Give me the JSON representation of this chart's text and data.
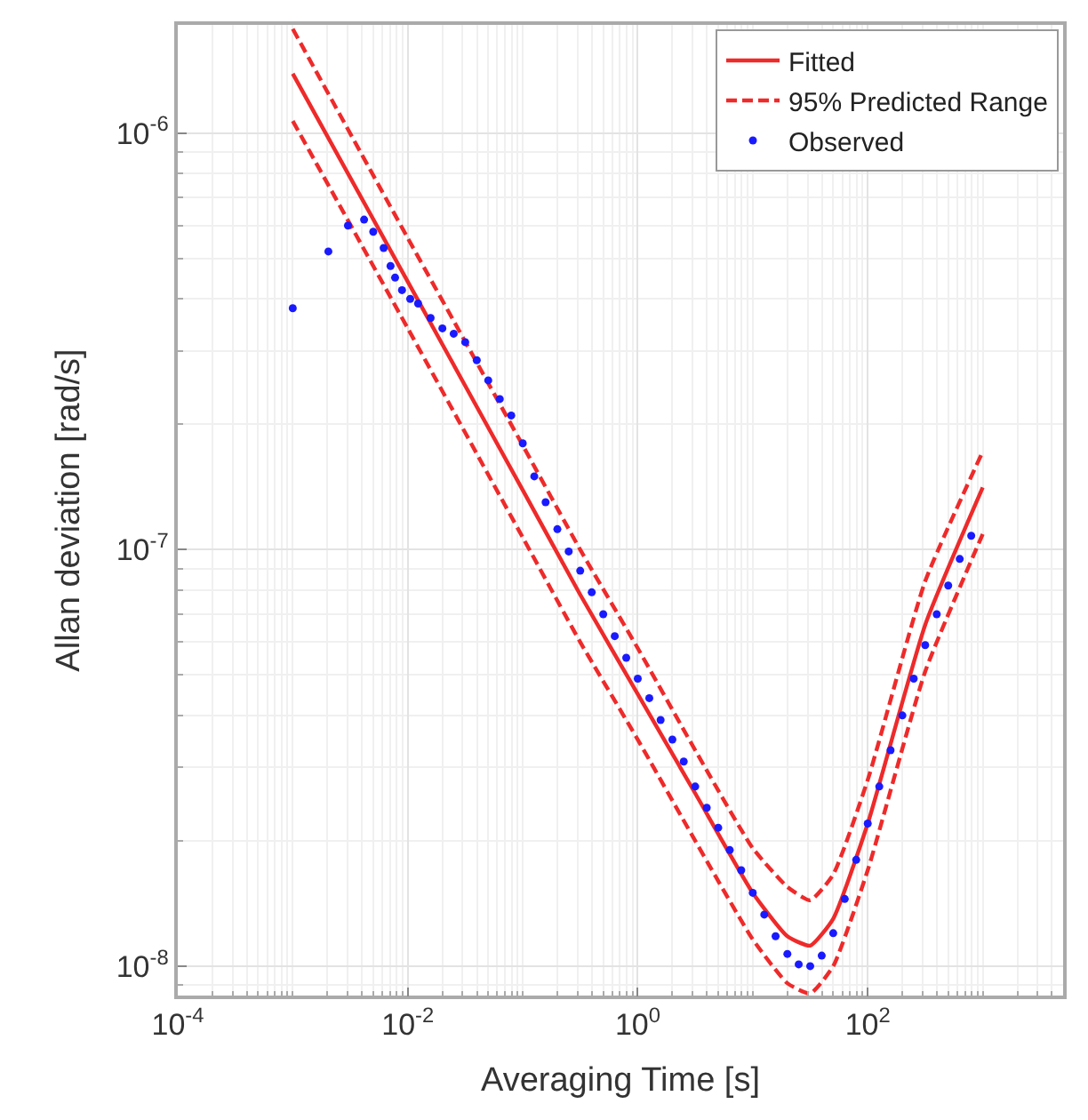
{
  "chart_data": {
    "type": "line",
    "xlabel": "Averaging Time [s]",
    "ylabel": "Allan deviation [rad/s]",
    "log": "xy",
    "grid": true,
    "legend": "top right",
    "xlim": [
      0.0001,
      5000
    ],
    "ylim": [
      8.5e-09,
      1.82e-06
    ],
    "xticks": [
      {
        "value": 0.0001,
        "label": "10$^{-4}$"
      },
      {
        "value": 0.01,
        "label": "10$^{-2}$"
      },
      {
        "value": 1,
        "label": "10$^{0}$"
      },
      {
        "value": 100,
        "label": "10$^{2}$"
      }
    ],
    "yticks": [
      {
        "value": 1e-08,
        "label": "10$^{-8}$"
      },
      {
        "value": 1e-07,
        "label": "10$^{-7}$"
      },
      {
        "value": 1e-06,
        "label": "10$^{-6}$"
      }
    ],
    "series": [
      {
        "name": "Observed",
        "type": "scatter",
        "marker": "circle",
        "color": "#1a1aff",
        "x": [
          0.001,
          0.00204,
          0.00302,
          0.00417,
          0.00501,
          0.00617,
          0.00708,
          0.00776,
          0.00891,
          0.0105,
          0.0123,
          0.0158,
          0.02,
          0.0251,
          0.0316,
          0.0398,
          0.0501,
          0.0631,
          0.0794,
          0.1,
          0.126,
          0.158,
          0.2,
          0.251,
          0.316,
          0.398,
          0.501,
          0.631,
          0.794,
          1,
          1.26,
          1.58,
          2,
          2.51,
          3.16,
          3.98,
          5.01,
          6.31,
          7.94,
          10,
          12.6,
          15.8,
          20,
          25.1,
          31.6,
          39.8,
          50.1,
          63.1,
          79.4,
          100,
          126,
          158,
          200,
          251,
          316,
          398,
          501,
          631,
          794
        ],
        "values": [
          3.8e-07,
          5.2e-07,
          6e-07,
          6.2e-07,
          5.8e-07,
          5.3e-07,
          4.8e-07,
          4.5e-07,
          4.2e-07,
          4e-07,
          3.9e-07,
          3.6e-07,
          3.4e-07,
          3.3e-07,
          3.15e-07,
          2.85e-07,
          2.55e-07,
          2.3e-07,
          2.1e-07,
          1.8e-07,
          1.5e-07,
          1.3e-07,
          1.12e-07,
          9.9e-08,
          8.9e-08,
          7.9e-08,
          7e-08,
          6.2e-08,
          5.5e-08,
          4.9e-08,
          4.4e-08,
          3.9e-08,
          3.5e-08,
          3.1e-08,
          2.7e-08,
          2.4e-08,
          2.15e-08,
          1.9e-08,
          1.7e-08,
          1.5e-08,
          1.33e-08,
          1.18e-08,
          1.07e-08,
          1.01e-08,
          1e-08,
          1.06e-08,
          1.2e-08,
          1.45e-08,
          1.8e-08,
          2.2e-08,
          2.7e-08,
          3.3e-08,
          4e-08,
          4.9e-08,
          5.9e-08,
          7e-08,
          8.2e-08,
          9.5e-08,
          1.08e-07
        ]
      },
      {
        "name": "Fitted",
        "line_style": "solid",
        "color": "#ee2a2a",
        "x": [
          0.001,
          0.01,
          0.1,
          0.316,
          1,
          3.16,
          10,
          20,
          31.6,
          50.1,
          100,
          316,
          1000
        ],
        "values": [
          1.39e-06,
          4.4e-07,
          1.39e-07,
          7.8e-08,
          4.5e-08,
          2.6e-08,
          1.5e-08,
          1.18e-08,
          1.12e-08,
          1.3e-08,
          2.2e-08,
          6.6e-08,
          1.41e-07
        ]
      },
      {
        "name": "95% Predicted Range",
        "line_style": "dashed",
        "color": "#ee2a2a",
        "x": [
          0.001,
          0.01,
          0.1,
          0.316,
          1,
          3.16,
          10,
          20,
          31.6,
          50.1,
          100,
          316,
          1000
        ],
        "values": [
          1.78e-06,
          5.6e-07,
          1.78e-07,
          1e-07,
          5.8e-08,
          3.3e-08,
          1.92e-08,
          1.55e-08,
          1.44e-08,
          1.66e-08,
          2.8e-08,
          8.4e-08,
          1.72e-07
        ]
      },
      {
        "line_style": "dashed",
        "color": "#ee2a2a",
        "x": [
          0.001,
          0.01,
          0.1,
          0.316,
          1,
          3.16,
          10,
          20,
          31.6,
          50.1,
          100,
          316,
          1000
        ],
        "values": [
          1.07e-06,
          3.4e-07,
          1.07e-07,
          6e-08,
          3.5e-08,
          2e-08,
          1.16e-08,
          9.1e-09,
          8.6e-09,
          1e-08,
          1.7e-08,
          5.1e-08,
          1.09e-07
        ]
      }
    ]
  }
}
